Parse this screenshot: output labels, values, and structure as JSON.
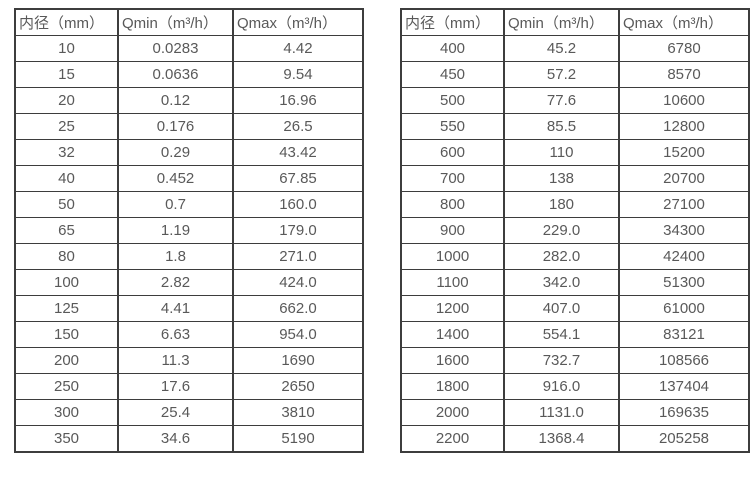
{
  "colors": {
    "background": "#ffffff",
    "border": "#3d3d3d",
    "text": "#595959"
  },
  "tables": [
    {
      "id": "flow-rate-table-dn10-350",
      "headers": [
        "内径（mm）",
        "Qmin（m³/h）",
        "Qmax（m³/h）"
      ],
      "rows": [
        [
          "10",
          "0.0283",
          "4.42"
        ],
        [
          "15",
          "0.0636",
          "9.54"
        ],
        [
          "20",
          "0.12",
          "16.96"
        ],
        [
          "25",
          "0.176",
          "26.5"
        ],
        [
          "32",
          "0.29",
          "43.42"
        ],
        [
          "40",
          "0.452",
          "67.85"
        ],
        [
          "50",
          "0.7",
          "160.0"
        ],
        [
          "65",
          "1.19",
          "179.0"
        ],
        [
          "80",
          "1.8",
          "271.0"
        ],
        [
          "100",
          "2.82",
          "424.0"
        ],
        [
          "125",
          "4.41",
          "662.0"
        ],
        [
          "150",
          "6.63",
          "954.0"
        ],
        [
          "200",
          "11.3",
          "1690"
        ],
        [
          "250",
          "17.6",
          "2650"
        ],
        [
          "300",
          "25.4",
          "3810"
        ],
        [
          "350",
          "34.6",
          "5190"
        ]
      ]
    },
    {
      "id": "flow-rate-table-dn400-2200",
      "headers": [
        "内径（mm）",
        "Qmin（m³/h）",
        "Qmax（m³/h）"
      ],
      "rows": [
        [
          "400",
          "45.2",
          "6780"
        ],
        [
          "450",
          "57.2",
          "8570"
        ],
        [
          "500",
          "77.6",
          "10600"
        ],
        [
          "550",
          "85.5",
          "12800"
        ],
        [
          "600",
          "110",
          "15200"
        ],
        [
          "700",
          "138",
          "20700"
        ],
        [
          "800",
          "180",
          "27100"
        ],
        [
          "900",
          "229.0",
          "34300"
        ],
        [
          "1000",
          "282.0",
          "42400"
        ],
        [
          "1100",
          "342.0",
          "51300"
        ],
        [
          "1200",
          "407.0",
          "61000"
        ],
        [
          "1400",
          "554.1",
          "83121"
        ],
        [
          "1600",
          "732.7",
          "108566"
        ],
        [
          "1800",
          "916.0",
          "137404"
        ],
        [
          "2000",
          "1131.0",
          "169635"
        ],
        [
          "2200",
          "1368.4",
          "205258"
        ]
      ]
    }
  ]
}
